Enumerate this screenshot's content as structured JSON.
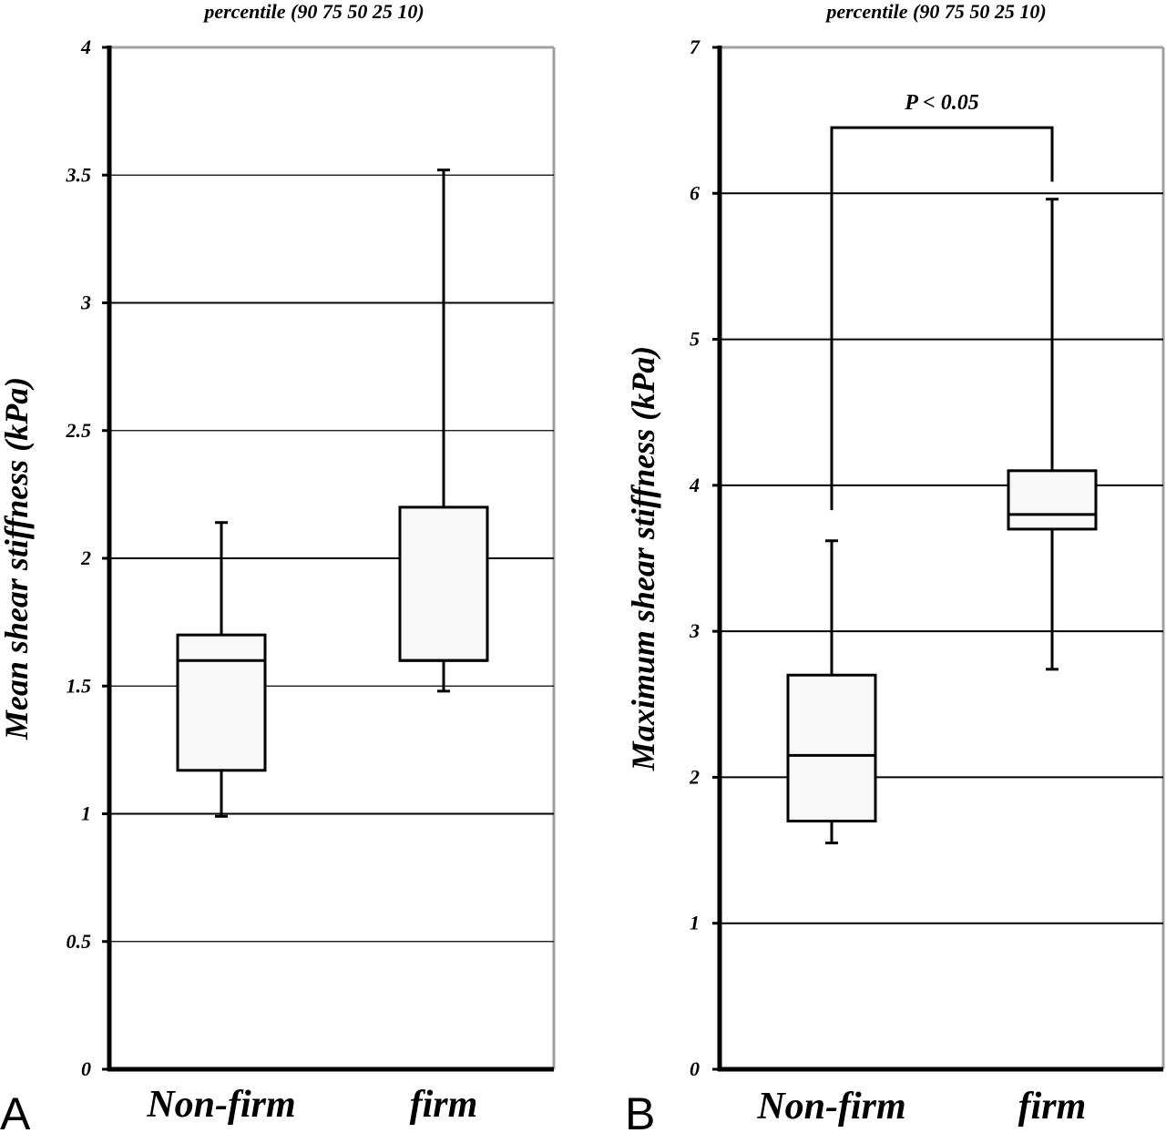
{
  "chart_data": [
    {
      "type": "box",
      "panel_letter": "A",
      "title": "percentile (90 75 50 25 10)",
      "ylabel": "Mean shear stiffness (kPa)",
      "ylim": [
        0,
        4
      ],
      "yticks": [
        0,
        0.5,
        1,
        1.5,
        2,
        2.5,
        3,
        3.5,
        4
      ],
      "ytick_labels": [
        "0",
        "0.5",
        "1",
        "1.5",
        "2",
        "2.5",
        "3",
        "3.5",
        "4"
      ],
      "grid": true,
      "categories": [
        "Non-firm",
        "firm"
      ],
      "boxes": [
        {
          "category": "Non-firm",
          "p10": 0.99,
          "p25": 1.17,
          "p50": 1.6,
          "p75": 1.7,
          "p90": 2.14
        },
        {
          "category": "firm",
          "p10": 1.48,
          "p25": 1.6,
          "p50": 1.6,
          "p75": 2.2,
          "p90": 3.52
        }
      ],
      "annotation": null
    },
    {
      "type": "box",
      "panel_letter": "B",
      "title": "percentile (90 75 50 25 10)",
      "ylabel": "Maximum shear stiffness (kPa)",
      "ylim": [
        0,
        7
      ],
      "yticks": [
        0,
        1,
        2,
        3,
        4,
        5,
        6,
        7
      ],
      "ytick_labels": [
        "0",
        "1",
        "2",
        "3",
        "4",
        "5",
        "6",
        "7"
      ],
      "grid": true,
      "categories": [
        "Non-firm",
        "firm"
      ],
      "boxes": [
        {
          "category": "Non-firm",
          "p10": 1.55,
          "p25": 1.7,
          "p50": 2.15,
          "p75": 2.7,
          "p90": 3.62
        },
        {
          "category": "firm",
          "p10": 2.74,
          "p25": 3.7,
          "p50": 3.8,
          "p75": 4.1,
          "p90": 5.96
        }
      ],
      "annotation": {
        "text": "P < 0.05",
        "bracket_y": 6.45,
        "left_low": 3.83,
        "right_low": 6.08
      }
    }
  ]
}
